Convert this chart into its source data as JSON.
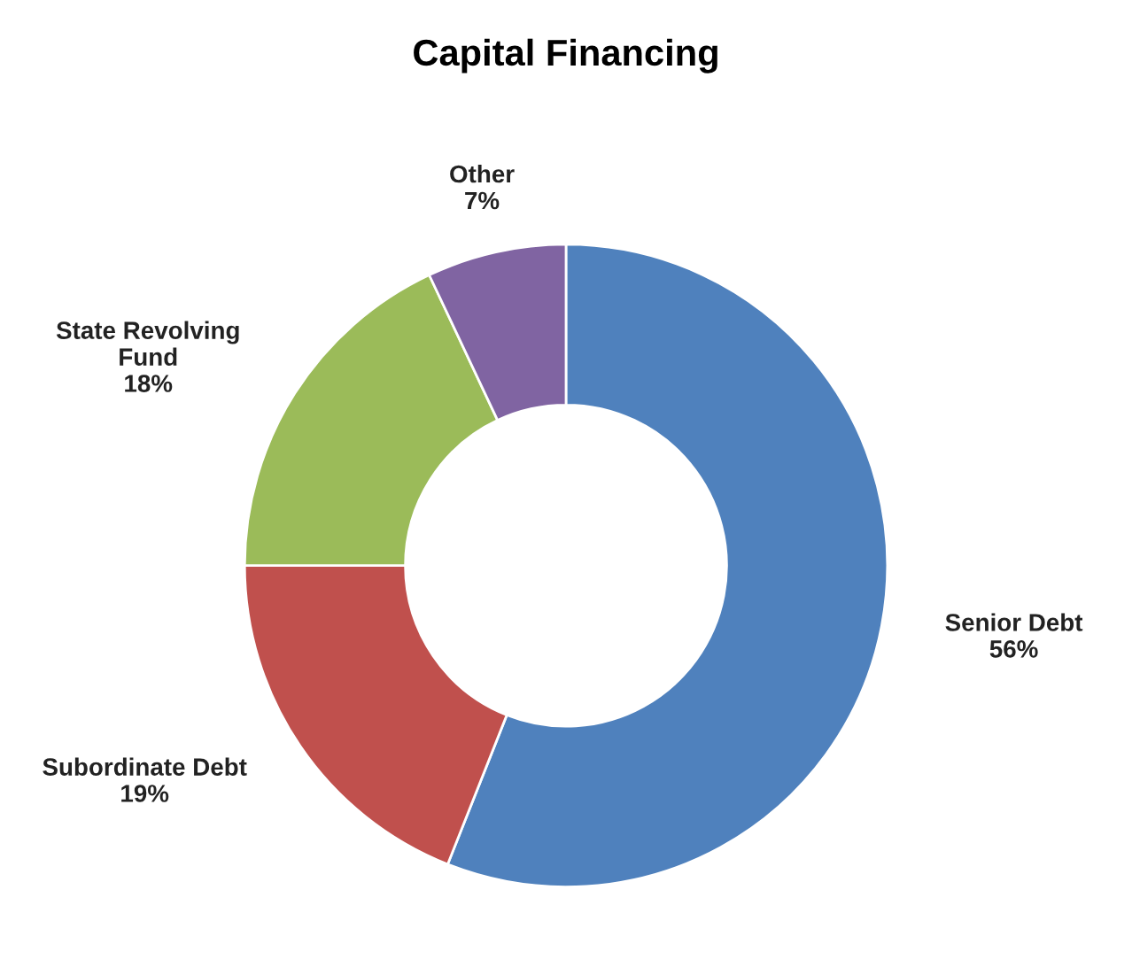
{
  "chart_data": {
    "type": "donut",
    "title": "Capital Financing",
    "categories": [
      "Senior Debt",
      "Subordinate Debt",
      "State Revolving Fund",
      "Other"
    ],
    "values": [
      56,
      19,
      18,
      7
    ],
    "value_labels": [
      "56%",
      "19%",
      "18%",
      "7%"
    ],
    "colors": [
      "#4f81bd",
      "#c0504d",
      "#9bbb59",
      "#8064a2"
    ]
  }
}
